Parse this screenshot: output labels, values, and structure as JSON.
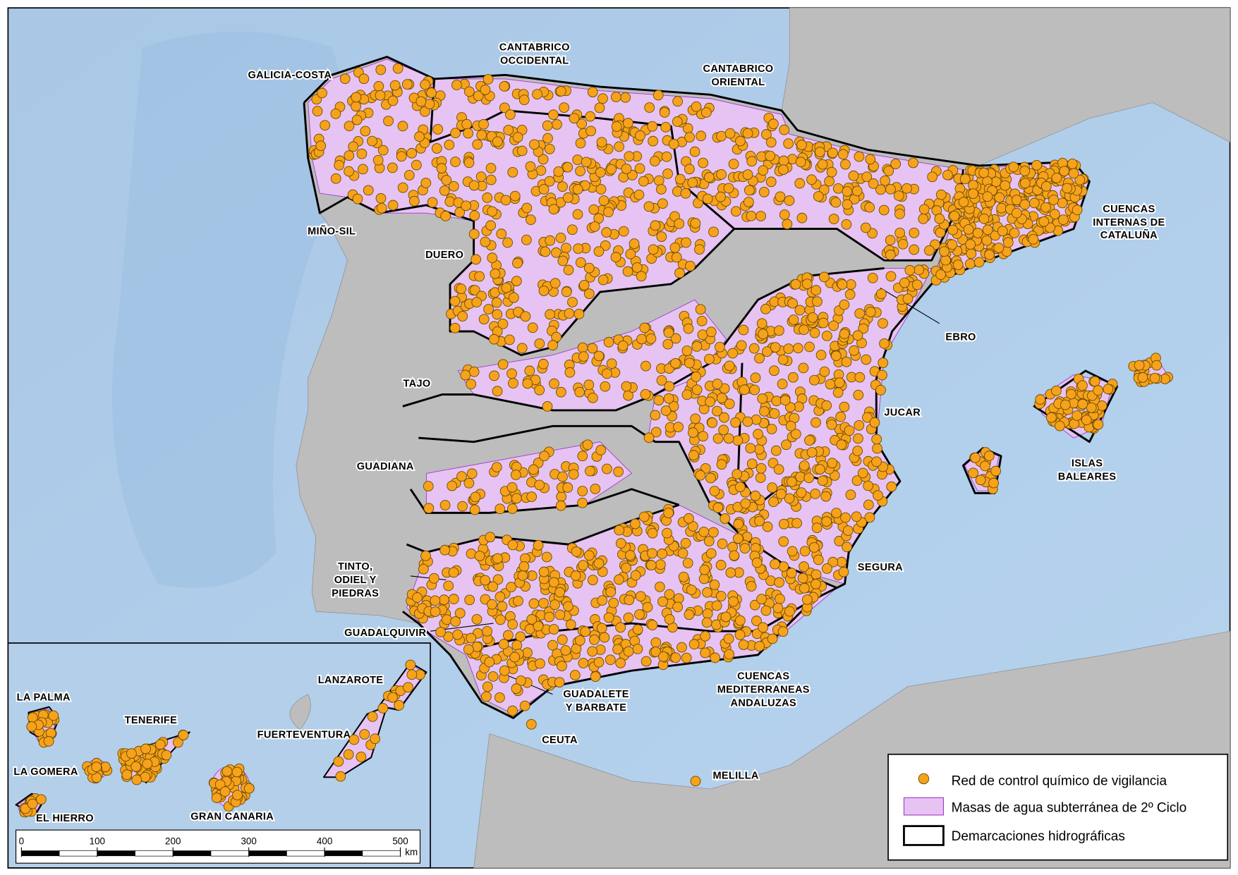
{
  "labels": {
    "galicia_costa": "GALICIA-COSTA",
    "cantabrico_occidental": [
      "CANTABRICO",
      "OCCIDENTAL"
    ],
    "cantabrico_oriental": [
      "CANTABRICO",
      "ORIENTAL"
    ],
    "mino_sil": "MIÑO-SIL",
    "duero": "DUERO",
    "cuencas_internas_cataluna": [
      "CUENCAS",
      "INTERNAS DE",
      "CATALUÑA"
    ],
    "ebro": "EBRO",
    "tajo": "TAJO",
    "jucar": "JUCAR",
    "guadiana": "GUADIANA",
    "islas_baleares": [
      "ISLAS",
      "BALEARES"
    ],
    "tinto_odiel_piedras": [
      "TINTO,",
      "ODIEL Y",
      "PIEDRAS"
    ],
    "segura": "SEGURA",
    "guadalquivir": "GUADALQUIVIR",
    "guadalete_barbate": [
      "GUADALETE",
      "Y BARBATE"
    ],
    "cuencas_mediterraneas_andaluzas": [
      "CUENCAS",
      "MEDITERRANEAS",
      "ANDALUZAS"
    ],
    "ceuta": "CEUTA",
    "melilla": "MELILLA",
    "lanzarote": "LANZAROTE",
    "la_palma": "LA PALMA",
    "tenerife": "TENERIFE",
    "fuerteventura": "FUERTEVENTURA",
    "la_gomera": "LA GOMERA",
    "el_hierro": "EL HIERRO",
    "gran_canaria": "GRAN CANARIA"
  },
  "legend": [
    "Red de control químico de vigilancia",
    "Masas de agua subterránea de 2º Ciclo",
    "Demarcaciones hidrográficas"
  ],
  "scale": {
    "ticks": [
      0,
      100,
      200,
      300,
      400,
      500
    ],
    "unit": "km"
  }
}
